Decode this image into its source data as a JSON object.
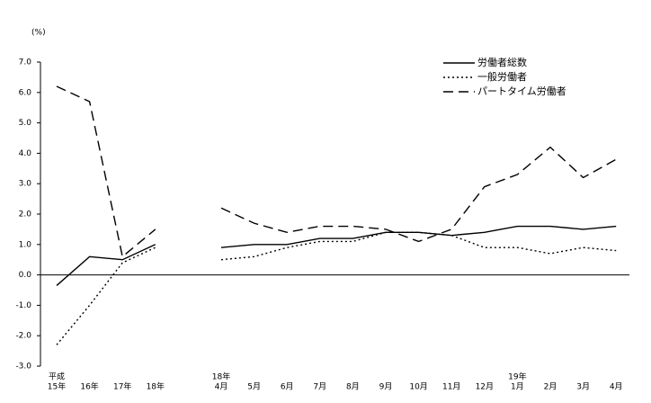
{
  "chart_data": {
    "type": "line",
    "y_unit_label": "(%)",
    "categories": [
      "15年",
      "16年",
      "17年",
      "18年",
      null,
      "4月",
      "5月",
      "6月",
      "7月",
      "8月",
      "9月",
      "10月",
      "11月",
      "12月",
      "1月",
      "2月",
      "3月",
      "4月"
    ],
    "category_groups": [
      "平成",
      null,
      null,
      null,
      null,
      "18年",
      null,
      null,
      null,
      null,
      null,
      null,
      null,
      null,
      "19年",
      null,
      null,
      null
    ],
    "series": [
      {
        "name": "労働者総数",
        "color": "#000000",
        "line_style": "solid",
        "values": [
          -0.35,
          0.6,
          0.5,
          1.0,
          null,
          0.9,
          1.0,
          1.0,
          1.2,
          1.2,
          1.4,
          1.4,
          1.3,
          1.4,
          1.6,
          1.6,
          1.5,
          1.6
        ]
      },
      {
        "name": "一般労働者",
        "color": "#000000",
        "line_style": "dotted",
        "values": [
          -2.3,
          -1.0,
          0.4,
          0.9,
          null,
          0.5,
          0.6,
          0.9,
          1.1,
          1.1,
          1.4,
          1.4,
          1.3,
          0.9,
          0.9,
          0.7,
          0.9,
          0.8
        ]
      },
      {
        "name": "パートタイム労働者",
        "color": "#000000",
        "line_style": "dashed",
        "values": [
          6.2,
          5.7,
          0.6,
          1.5,
          null,
          2.2,
          1.7,
          1.4,
          1.6,
          1.6,
          1.5,
          1.1,
          1.5,
          2.9,
          3.3,
          4.2,
          3.2,
          3.8
        ]
      }
    ],
    "ylim": [
      -3.0,
      7.0
    ],
    "yticks": [
      {
        "value": 7,
        "label": "7.0"
      },
      {
        "value": 6,
        "label": "6.0"
      },
      {
        "value": 5,
        "label": "5.0"
      },
      {
        "value": 4,
        "label": "4.0"
      },
      {
        "value": 3,
        "label": "3.0"
      },
      {
        "value": 2,
        "label": "2.0"
      },
      {
        "value": 1,
        "label": "1.0"
      },
      {
        "value": 0,
        "label": "0.0"
      },
      {
        "value": -1,
        "label": "-1.0"
      },
      {
        "value": -2,
        "label": "-2.0"
      },
      {
        "value": -3,
        "label": "-3.0"
      }
    ],
    "zero_line": true,
    "legend": "top-right"
  }
}
